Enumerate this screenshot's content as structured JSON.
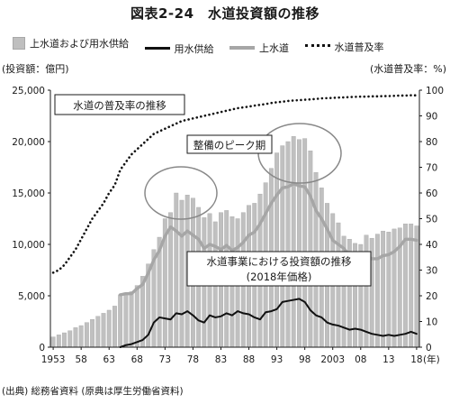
{
  "title": "図表2-24　水道投資額の推移",
  "legend": {
    "bars": "上水道および用水供給",
    "black_line": "用水供給",
    "gray_line": "上水道",
    "dotted_line": "水道普及率"
  },
  "left_axis_caption": "(投資額：億円)",
  "right_axis_caption": "(水道普及率：%)",
  "year_suffix": "(年)",
  "source": "(出典) 総務省資料 (原典は厚生労働省資料)",
  "annotations": {
    "coverage": "水道の普及率の推移",
    "peak": "整備のピーク期",
    "invest_line1": "水道事業における投資額の推移",
    "invest_line2": "(2018年価格)"
  },
  "colors": {
    "bars": "#c0c0c0",
    "gray_line": "#a6a6a6",
    "black_line": "#111111",
    "dotted": "#111111"
  },
  "chart_data": {
    "type": "bar",
    "title": "図表2-24　水道投資額の推移",
    "x_tick_labels": [
      "1953",
      "58",
      "63",
      "68",
      "73",
      "78",
      "83",
      "88",
      "93",
      "98",
      "2003",
      "08",
      "13",
      "18"
    ],
    "y_left": {
      "label": "(投資額：億円)",
      "ylim": [
        0,
        25000
      ],
      "ticks": [
        "0",
        "5,000",
        "10,000",
        "15,000",
        "20,000",
        "25,000"
      ]
    },
    "y_right": {
      "label": "(水道普及率：%)",
      "ylim": [
        0,
        100
      ],
      "ticks": [
        "0",
        "10",
        "20",
        "30",
        "40",
        "50",
        "60",
        "70",
        "80",
        "90",
        "100"
      ]
    },
    "years": [
      1953,
      1954,
      1955,
      1956,
      1957,
      1958,
      1959,
      1960,
      1961,
      1962,
      1963,
      1964,
      1965,
      1966,
      1967,
      1968,
      1969,
      1970,
      1971,
      1972,
      1973,
      1974,
      1975,
      1976,
      1977,
      1978,
      1979,
      1980,
      1981,
      1982,
      1983,
      1984,
      1985,
      1986,
      1987,
      1988,
      1989,
      1990,
      1991,
      1992,
      1993,
      1994,
      1995,
      1996,
      1997,
      1998,
      1999,
      2000,
      2001,
      2002,
      2003,
      2004,
      2005,
      2006,
      2007,
      2008,
      2009,
      2010,
      2011,
      2012,
      2013,
      2014,
      2015,
      2016,
      2017,
      2018
    ],
    "series": [
      {
        "name": "上水道および用水供給",
        "kind": "bar",
        "axis": "left",
        "values": [
          1000,
          1200,
          1400,
          1600,
          1900,
          2100,
          2400,
          2700,
          3000,
          3300,
          3600,
          4000,
          5100,
          5300,
          5400,
          6000,
          6900,
          8100,
          9500,
          10700,
          12500,
          13100,
          15000,
          14300,
          14800,
          14500,
          13600,
          12600,
          13000,
          12200,
          13100,
          13300,
          12700,
          12500,
          13100,
          13800,
          14000,
          14900,
          16000,
          17400,
          18900,
          19600,
          20000,
          20500,
          20200,
          20300,
          19100,
          17000,
          15500,
          14000,
          13000,
          12100,
          10800,
          10500,
          10100,
          10000,
          10900,
          10600,
          11000,
          11300,
          11200,
          11500,
          11600,
          12000,
          12000,
          11800
        ]
      },
      {
        "name": "上水道",
        "kind": "line",
        "axis": "left",
        "values": [
          null,
          null,
          null,
          null,
          null,
          null,
          null,
          null,
          null,
          null,
          null,
          null,
          5100,
          5200,
          5200,
          5700,
          6100,
          7200,
          8500,
          9400,
          10800,
          11700,
          11300,
          10800,
          11300,
          10900,
          10500,
          9600,
          10000,
          9800,
          9500,
          9900,
          9400,
          9700,
          10200,
          10900,
          11200,
          12000,
          13000,
          14000,
          14800,
          15500,
          15600,
          15900,
          15700,
          15600,
          14700,
          13300,
          12500,
          11500,
          10400,
          10000,
          9600,
          8900,
          8700,
          8500,
          9000,
          8600,
          8600,
          8900,
          9000,
          9300,
          9800,
          10500,
          10500,
          10400
        ]
      },
      {
        "name": "用水供給",
        "kind": "line",
        "axis": "left",
        "values": [
          null,
          null,
          null,
          null,
          null,
          null,
          null,
          null,
          null,
          null,
          null,
          null,
          0,
          200,
          300,
          500,
          700,
          1200,
          2400,
          2900,
          2800,
          2700,
          3300,
          3200,
          3500,
          3100,
          2600,
          2400,
          3100,
          2900,
          3000,
          3300,
          3100,
          3500,
          3300,
          3200,
          2900,
          2700,
          3400,
          3500,
          3700,
          4400,
          4500,
          4600,
          4700,
          4400,
          3600,
          3100,
          2900,
          2400,
          2200,
          2100,
          1900,
          1700,
          1800,
          1700,
          1500,
          1300,
          1200,
          1100,
          1200,
          1100,
          1200,
          1300,
          1500,
          1300
        ]
      },
      {
        "name": "水道普及率",
        "kind": "dotted-line",
        "axis": "right",
        "values": [
          29,
          30,
          32,
          35,
          38,
          42,
          46,
          50,
          53,
          56,
          60,
          63,
          69,
          72,
          75,
          77,
          79,
          81,
          83,
          84,
          85,
          86,
          87,
          88,
          88.5,
          89,
          89.5,
          90,
          90.5,
          91,
          91.5,
          92,
          92.5,
          93,
          93.3,
          93.6,
          94,
          94.3,
          94.6,
          95,
          95.3,
          95.5,
          95.8,
          96,
          96.1,
          96.3,
          96.4,
          96.6,
          96.8,
          96.9,
          97,
          97.1,
          97.2,
          97.3,
          97.4,
          97.5,
          97.5,
          97.6,
          97.6,
          97.7,
          97.7,
          97.8,
          97.9,
          97.9,
          98,
          98
        ]
      }
    ],
    "grid": false,
    "legend_position": "top"
  }
}
